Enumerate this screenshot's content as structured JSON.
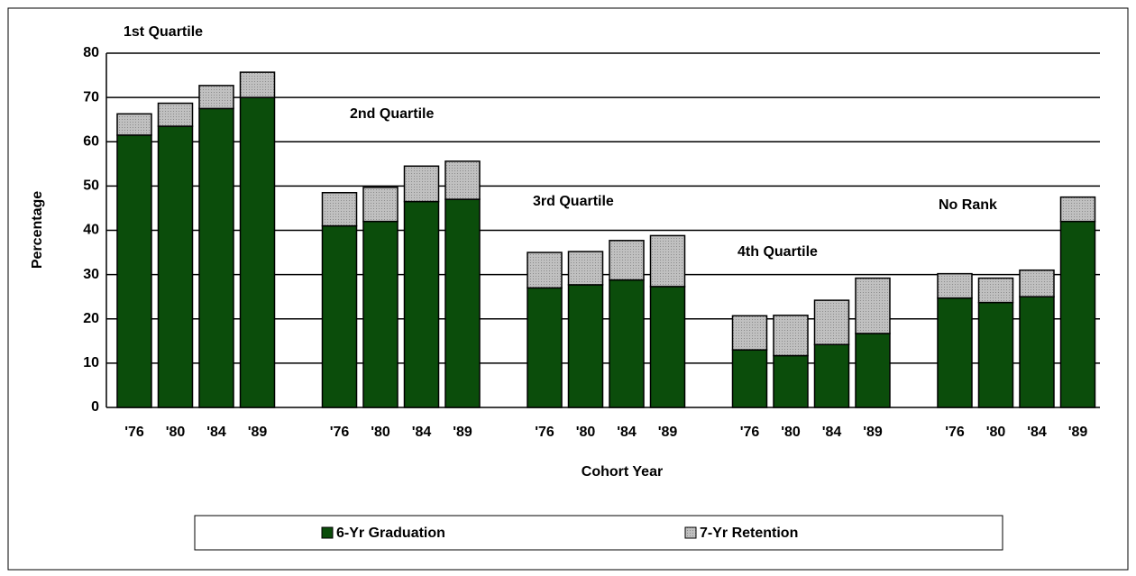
{
  "chart_data": {
    "type": "stacked_bar",
    "y_label": "Percentage",
    "x_label": "Cohort Year",
    "groups": [
      {
        "label": "1st  Quartile",
        "categories": [
          "'76",
          "'80",
          "'84",
          "'89"
        ]
      },
      {
        "label": "2nd  Quartile",
        "categories": [
          "'76",
          "'80",
          "'84",
          "'89"
        ]
      },
      {
        "label": "3rd  Quartile",
        "categories": [
          "'76",
          "'80",
          "'84",
          "'89"
        ]
      },
      {
        "label": "4th  Quartile",
        "categories": [
          "'76",
          "'80",
          "'84",
          "'89"
        ]
      },
      {
        "label": "No  Rank",
        "categories": [
          "'76",
          "'80",
          "'84",
          "'89"
        ]
      }
    ],
    "series": [
      {
        "name": "6-Yr Graduation",
        "color": "#0b4d0b",
        "values": [
          61.5,
          63.5,
          67.5,
          70,
          41,
          42,
          46.5,
          47,
          27,
          27.7,
          28.8,
          27.3,
          13,
          11.7,
          14.2,
          16.7,
          24.7,
          23.7,
          25,
          42
        ]
      },
      {
        "name": "7-Yr Retention",
        "color": "#c0c0c0",
        "values": [
          4.8,
          5.2,
          5.2,
          5.7,
          7.5,
          7.7,
          8,
          8.6,
          8,
          7.5,
          8.9,
          11.5,
          7.7,
          9.1,
          10,
          12.5,
          5.5,
          5.5,
          6,
          5.5
        ]
      }
    ],
    "ylim": [
      0,
      80
    ],
    "yticks": [
      0,
      10,
      20,
      30,
      40,
      50,
      60,
      70,
      80
    ],
    "grid": true
  }
}
